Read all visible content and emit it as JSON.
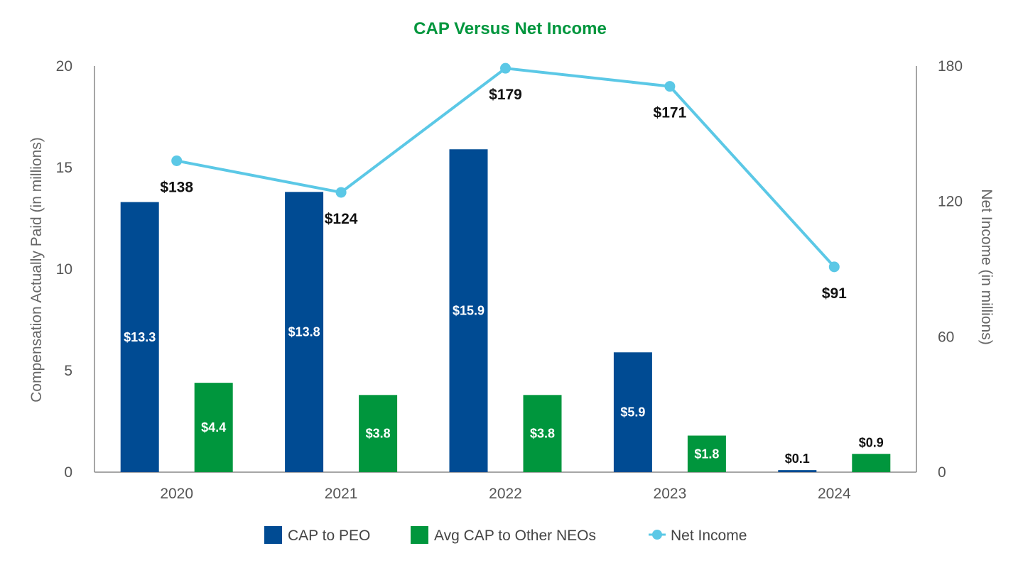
{
  "chart_data": {
    "type": "bar",
    "title": "CAP Versus Net Income",
    "categories": [
      "2020",
      "2021",
      "2022",
      "2023",
      "2024"
    ],
    "series": [
      {
        "name": "CAP to PEO",
        "kind": "bar",
        "axis": "left",
        "color": "#004B93",
        "values": [
          13.3,
          13.8,
          15.9,
          5.9,
          0.1
        ],
        "labels": [
          "$13.3",
          "$13.8",
          "$15.9",
          "$5.9",
          "$0.1"
        ]
      },
      {
        "name": "Avg CAP to Other NEOs",
        "kind": "bar",
        "axis": "left",
        "color": "#00963D",
        "values": [
          4.4,
          3.8,
          3.8,
          1.8,
          0.9
        ],
        "labels": [
          "$4.4",
          "$3.8",
          "$3.8",
          "$1.8",
          "$0.9"
        ]
      },
      {
        "name": "Net Income",
        "kind": "line",
        "axis": "right",
        "color": "#5BC8E6",
        "values": [
          138,
          124,
          179,
          171,
          91
        ],
        "labels": [
          "$138",
          "$124",
          "$179",
          "$171",
          "$91"
        ]
      }
    ],
    "ylabel": "Compensation Actually Paid (in millions)",
    "ylim": [
      0,
      20
    ],
    "yticks": [
      "0",
      "5",
      "10",
      "15",
      "20"
    ],
    "y2label": "Net Income (in millions)",
    "y2lim": [
      0,
      180
    ],
    "y2ticks": [
      "0",
      "60",
      "120",
      "180"
    ],
    "title_color": "#00963D",
    "grid": false,
    "legend_position": "bottom"
  }
}
